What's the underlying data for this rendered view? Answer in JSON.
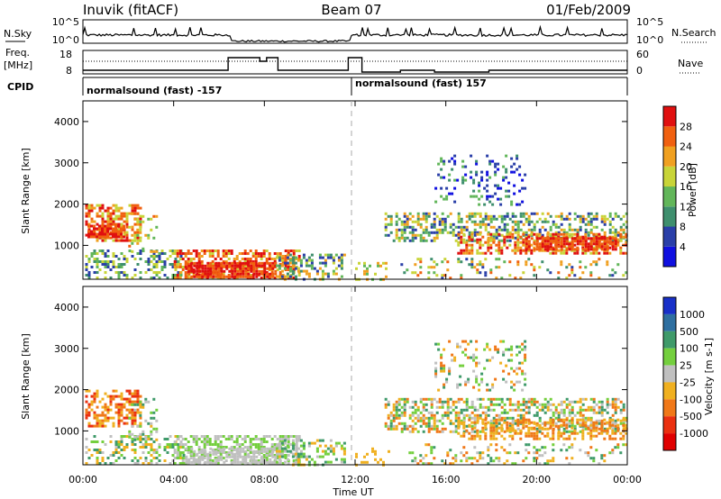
{
  "header": {
    "station": "Inuvik (fitACF)",
    "beam": "Beam 07",
    "date": "01/Feb/2009"
  },
  "top_panels": {
    "noise": {
      "left_label": "N.Sky",
      "left_ticks": [
        "10^5",
        "10^0"
      ],
      "right_ticks": [
        "10^5",
        "10^0"
      ],
      "right_label": "N.Search"
    },
    "freq": {
      "left_label_1": "Freq.",
      "left_label_2": "[MHz]",
      "left_ticks": [
        "18",
        "8"
      ],
      "right_ticks": [
        "60",
        "0"
      ],
      "right_label": "Nave"
    },
    "cpid": {
      "label": "CPID",
      "segment_1": "normalsound (fast) -157",
      "segment_2": "normalsound (fast) 157"
    }
  },
  "x_axis": {
    "ticks": [
      "00:00",
      "04:00",
      "08:00",
      "12:00",
      "16:00",
      "20:00",
      "00:00"
    ],
    "label": "Time UT"
  },
  "chart_data": [
    {
      "type": "heatmap",
      "title": "",
      "xlabel": "Time UT",
      "ylabel": "Slant Range [km]",
      "xlim": [
        0,
        24
      ],
      "ylim": [
        180,
        4500
      ],
      "yticks": [
        "1000",
        "2000",
        "3000",
        "4000"
      ],
      "colorbar": {
        "label": "Power [dB]",
        "ticks": [
          "4",
          "8",
          "12",
          "16",
          "20",
          "24",
          "28"
        ],
        "colors": [
          "#1010e0",
          "#2a3fa8",
          "#3f8f6e",
          "#62b65a",
          "#c8d438",
          "#f0a020",
          "#f06010",
          "#e01010"
        ]
      }
    },
    {
      "type": "heatmap",
      "title": "",
      "xlabel": "Time UT",
      "ylabel": "Slant Range [km]",
      "xlim": [
        0,
        24
      ],
      "ylim": [
        180,
        4500
      ],
      "yticks": [
        "1000",
        "2000",
        "3000",
        "4000"
      ],
      "colorbar": {
        "label": "Velocity [m s-1]",
        "ticks": [
          "1000",
          "500",
          "100",
          "25",
          "-25",
          "-100",
          "-500",
          "-1000"
        ],
        "colors": [
          "#1830c8",
          "#2e6fa0",
          "#3f9a6a",
          "#74cf3e",
          "#c0c0c0",
          "#f0b020",
          "#f07818",
          "#ea3010",
          "#e00000"
        ]
      }
    }
  ]
}
